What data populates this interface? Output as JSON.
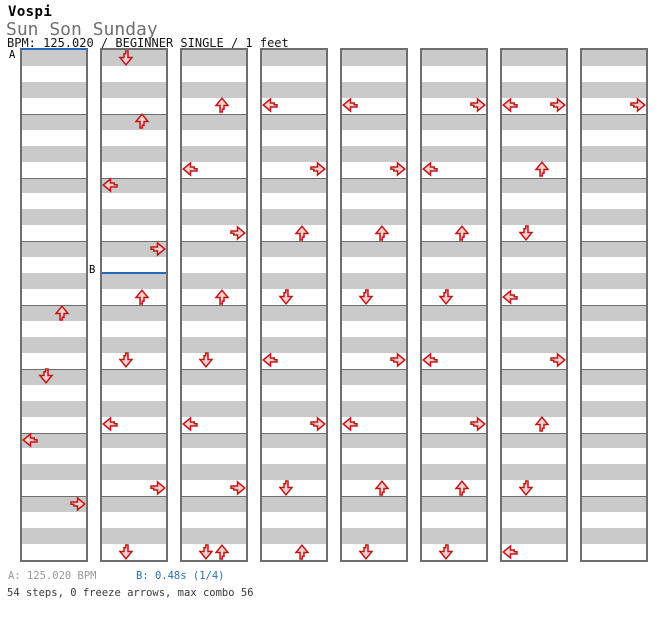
{
  "header": {
    "artist": "Vospi",
    "title": "Sun Son Sunday",
    "meta": "BPM: 125.020 / BEGINNER SINGLE / 1 feet"
  },
  "footer": {
    "marker_a": "A: 125.020 BPM",
    "marker_b": "B: 0.48s (1/4)",
    "summary": "54 steps, 0 freeze arrows, max combo 56"
  },
  "colors": {
    "arrow_fill": "#f6cfcf",
    "arrow_stroke": "#c11616",
    "row_gray": "#cacaca",
    "row_white": "#ffffff",
    "grid_border": "#6e6e6e",
    "marker_blue": "#2868b8"
  },
  "chart_data": {
    "type": "step_chart",
    "title": "Sun Son Sunday",
    "bpm": 125.02,
    "difficulty": "BEGINNER SINGLE",
    "feet": 1,
    "steps": 54,
    "freeze_arrows": 0,
    "max_combo": 56,
    "columns": 8,
    "rows_per_column": 32,
    "rows_per_measure": 4,
    "lanes": [
      "left",
      "down",
      "up",
      "right"
    ],
    "markers": [
      {
        "label": "A",
        "col": 0,
        "row": 0,
        "value": "125.020 BPM"
      },
      {
        "label": "B",
        "col": 1,
        "row": 14,
        "value": "0.48s (1/4)"
      }
    ],
    "arrows": [
      {
        "col": 0,
        "row": 16,
        "dir": "up"
      },
      {
        "col": 0,
        "row": 20,
        "dir": "down"
      },
      {
        "col": 0,
        "row": 24,
        "dir": "left"
      },
      {
        "col": 0,
        "row": 28,
        "dir": "right"
      },
      {
        "col": 1,
        "row": 0,
        "dir": "down"
      },
      {
        "col": 1,
        "row": 4,
        "dir": "up"
      },
      {
        "col": 1,
        "row": 8,
        "dir": "left"
      },
      {
        "col": 1,
        "row": 12,
        "dir": "right"
      },
      {
        "col": 1,
        "row": 15,
        "dir": "up"
      },
      {
        "col": 1,
        "row": 19,
        "dir": "down"
      },
      {
        "col": 1,
        "row": 23,
        "dir": "left"
      },
      {
        "col": 1,
        "row": 27,
        "dir": "right"
      },
      {
        "col": 1,
        "row": 31,
        "dir": "down"
      },
      {
        "col": 2,
        "row": 3,
        "dir": "up"
      },
      {
        "col": 2,
        "row": 7,
        "dir": "left"
      },
      {
        "col": 2,
        "row": 11,
        "dir": "right"
      },
      {
        "col": 2,
        "row": 15,
        "dir": "up"
      },
      {
        "col": 2,
        "row": 19,
        "dir": "down"
      },
      {
        "col": 2,
        "row": 23,
        "dir": "left"
      },
      {
        "col": 2,
        "row": 27,
        "dir": "right"
      },
      {
        "col": 2,
        "row": 31,
        "dir": "down"
      },
      {
        "col": 2,
        "row": 31,
        "dir": "up"
      },
      {
        "col": 3,
        "row": 3,
        "dir": "left"
      },
      {
        "col": 3,
        "row": 7,
        "dir": "right"
      },
      {
        "col": 3,
        "row": 11,
        "dir": "up"
      },
      {
        "col": 3,
        "row": 15,
        "dir": "down"
      },
      {
        "col": 3,
        "row": 19,
        "dir": "left"
      },
      {
        "col": 3,
        "row": 23,
        "dir": "right"
      },
      {
        "col": 3,
        "row": 27,
        "dir": "down"
      },
      {
        "col": 3,
        "row": 31,
        "dir": "up"
      },
      {
        "col": 4,
        "row": 3,
        "dir": "left"
      },
      {
        "col": 4,
        "row": 7,
        "dir": "right"
      },
      {
        "col": 4,
        "row": 11,
        "dir": "up"
      },
      {
        "col": 4,
        "row": 15,
        "dir": "down"
      },
      {
        "col": 4,
        "row": 19,
        "dir": "right"
      },
      {
        "col": 4,
        "row": 23,
        "dir": "left"
      },
      {
        "col": 4,
        "row": 27,
        "dir": "up"
      },
      {
        "col": 4,
        "row": 31,
        "dir": "down"
      },
      {
        "col": 5,
        "row": 3,
        "dir": "right"
      },
      {
        "col": 5,
        "row": 7,
        "dir": "left"
      },
      {
        "col": 5,
        "row": 11,
        "dir": "up"
      },
      {
        "col": 5,
        "row": 15,
        "dir": "down"
      },
      {
        "col": 5,
        "row": 19,
        "dir": "left"
      },
      {
        "col": 5,
        "row": 23,
        "dir": "right"
      },
      {
        "col": 5,
        "row": 27,
        "dir": "up"
      },
      {
        "col": 5,
        "row": 31,
        "dir": "down"
      },
      {
        "col": 6,
        "row": 3,
        "dir": "left"
      },
      {
        "col": 6,
        "row": 3,
        "dir": "right"
      },
      {
        "col": 6,
        "row": 7,
        "dir": "up"
      },
      {
        "col": 6,
        "row": 11,
        "dir": "down"
      },
      {
        "col": 6,
        "row": 15,
        "dir": "left"
      },
      {
        "col": 6,
        "row": 19,
        "dir": "right"
      },
      {
        "col": 6,
        "row": 23,
        "dir": "up"
      },
      {
        "col": 6,
        "row": 27,
        "dir": "down"
      },
      {
        "col": 6,
        "row": 31,
        "dir": "left"
      },
      {
        "col": 7,
        "row": 3,
        "dir": "right"
      }
    ]
  }
}
